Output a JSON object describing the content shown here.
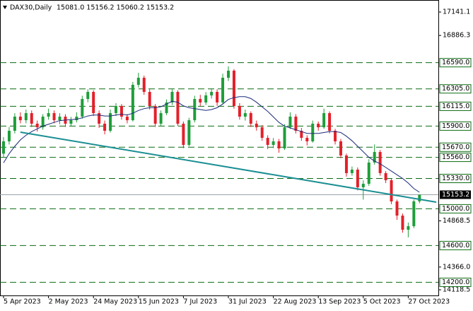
{
  "chart_data": {
    "type": "candlestick",
    "title": "DAX30,Daily",
    "ohlc_label": "15081.0 15156.2 15060.2 15153.2",
    "categories": [
      "5 Apr 2023",
      null,
      null,
      null,
      null,
      null,
      null,
      null,
      "2 May 2023",
      null,
      null,
      null,
      null,
      null,
      null,
      null,
      "24 May 2023",
      null,
      null,
      null,
      null,
      null,
      null,
      null,
      "15 Jun 2023",
      null,
      null,
      null,
      null,
      null,
      null,
      null,
      "7 Jul 2023",
      null,
      null,
      null,
      null,
      null,
      null,
      null,
      "31 Jul 2023",
      null,
      null,
      null,
      null,
      null,
      null,
      null,
      "22 Aug 2023",
      null,
      null,
      null,
      null,
      null,
      null,
      null,
      "13 Sep 2023",
      null,
      null,
      null,
      null,
      null,
      null,
      null,
      "5 Oct 2023",
      null,
      null,
      null,
      null,
      null,
      null,
      null,
      "27 Oct 2023",
      null,
      null
    ],
    "open": [
      15600,
      15734,
      15849,
      16003,
      15964,
      16041,
      15926,
      15887,
      16003,
      16041,
      15964,
      16003,
      15926,
      15964,
      16003,
      16195,
      16272,
      16041,
      15926,
      15849,
      16041,
      16118,
      16003,
      15964,
      16349,
      16426,
      16272,
      16118,
      15926,
      16041,
      16157,
      16272,
      15926,
      15695,
      15964,
      16195,
      16157,
      16234,
      16272,
      16157,
      16426,
      16503,
      16118,
      16003,
      16041,
      15926,
      15887,
      15772,
      15695,
      15734,
      15657,
      15887,
      16003,
      15849,
      15772,
      15734,
      15926,
      15887,
      16041,
      15849,
      15734,
      15580,
      15388,
      15426,
      15234,
      15272,
      15503,
      15618,
      15388,
      15311,
      15080,
      14926,
      14772,
      14811,
      15081.0
    ],
    "high": [
      15780,
      15890,
      16040,
      16050,
      16080,
      16070,
      15960,
      16030,
      16090,
      16070,
      16040,
      16030,
      16000,
      16050,
      16230,
      16300,
      16290,
      16070,
      15960,
      16080,
      16150,
      16140,
      16030,
      16380,
      16480,
      16450,
      16300,
      16140,
      16070,
      16190,
      16300,
      16290,
      15950,
      15990,
      16230,
      16240,
      16270,
      16310,
      16300,
      16470,
      16550,
      16520,
      16150,
      16080,
      16060,
      15960,
      15910,
      15800,
      15770,
      15760,
      15920,
      16050,
      16030,
      15880,
      15800,
      15960,
      15950,
      16090,
      16060,
      15870,
      15760,
      15600,
      15460,
      15450,
      15310,
      15540,
      15700,
      15640,
      15410,
      15330,
      15100,
      14950,
      14850,
      15100,
      15156.2
    ],
    "low": [
      15560,
      15700,
      15820,
      15930,
      15930,
      15890,
      15840,
      15860,
      15970,
      15930,
      15920,
      15890,
      15900,
      15940,
      15980,
      16160,
      16010,
      15880,
      15810,
      15830,
      16010,
      15970,
      15930,
      15950,
      16320,
      16240,
      16080,
      15890,
      15900,
      16020,
      16130,
      15900,
      15660,
      15680,
      15940,
      16120,
      16130,
      16200,
      16120,
      16140,
      16390,
      16090,
      15970,
      15960,
      15890,
      15850,
      15740,
      15650,
      15660,
      15610,
      15640,
      15870,
      15820,
      15740,
      15690,
      15720,
      15850,
      15870,
      15820,
      15700,
      15550,
      15350,
      15360,
      15200,
      15100,
      15250,
      15480,
      15360,
      15280,
      15050,
      14880,
      14740,
      14690,
      14790,
      15060.2
    ],
    "close": [
      15734,
      15849,
      16003,
      15964,
      16041,
      15926,
      15887,
      16003,
      16041,
      15964,
      16003,
      15926,
      15964,
      16003,
      16195,
      16272,
      16041,
      15926,
      15849,
      16041,
      16118,
      16003,
      15964,
      16349,
      16426,
      16272,
      16118,
      15926,
      16041,
      16157,
      16272,
      15926,
      15695,
      15964,
      16195,
      16157,
      16234,
      16272,
      16157,
      16426,
      16503,
      16118,
      16003,
      16041,
      15926,
      15887,
      15772,
      15695,
      15734,
      15657,
      15887,
      16003,
      15849,
      15772,
      15734,
      15926,
      15887,
      16041,
      15849,
      15734,
      15580,
      15388,
      15426,
      15234,
      15272,
      15503,
      15618,
      15388,
      15311,
      15080,
      14926,
      14772,
      14811,
      15081,
      15153.2
    ],
    "ma": [
      15500,
      15600,
      15680,
      15750,
      15800,
      15840,
      15870,
      15900,
      15920,
      15940,
      15960,
      15965,
      15970,
      15975,
      15990,
      16010,
      16020,
      16020,
      16010,
      16010,
      16020,
      16030,
      16020,
      16040,
      16070,
      16090,
      16100,
      16100,
      16110,
      16140,
      16170,
      16160,
      16120,
      16100,
      16090,
      16080,
      16070,
      16080,
      16100,
      16140,
      16190,
      16210,
      16220,
      16220,
      16200,
      16160,
      16110,
      16060,
      16000,
      15940,
      15900,
      15880,
      15860,
      15840,
      15820,
      15820,
      15820,
      15830,
      15840,
      15840,
      15830,
      15790,
      15740,
      15680,
      15620,
      15560,
      15520,
      15490,
      15450,
      15410,
      15370,
      15330,
      15280,
      15220,
      15180
    ],
    "up_color": "#1e9e3a",
    "down_color": "#e3202a",
    "ma_color": "#1c2a7a",
    "trendline": {
      "x": [
        3,
        77
      ],
      "y": [
        15834,
        15072
      ],
      "color": "#1b8f93"
    },
    "levels": [
      {
        "value": 16590,
        "label": "16590.0"
      },
      {
        "value": 16305,
        "label": "16305.0"
      },
      {
        "value": 16115,
        "label": "16115.0"
      },
      {
        "value": 15900,
        "label": "15900.0"
      },
      {
        "value": 15670,
        "label": "15670.0"
      },
      {
        "value": 15560,
        "label": "15560.0"
      },
      {
        "value": 15330,
        "label": "15330.0"
      },
      {
        "value": 15000,
        "label": "15000.0"
      },
      {
        "value": 14600,
        "label": "14600.0"
      },
      {
        "value": 14200,
        "label": "14200.0"
      }
    ],
    "level_color": "#0b6b12",
    "last_price": 15153.2,
    "ylim": [
      14057,
      17272
    ],
    "yticks": [
      17141.1,
      16886.3,
      14868.5,
      {
        "value": 14366,
        "label": "14366.0"
      },
      14118.5
    ]
  }
}
